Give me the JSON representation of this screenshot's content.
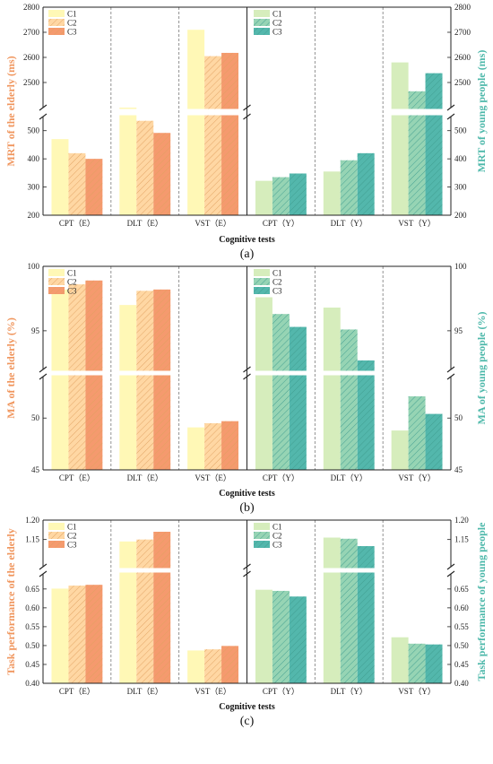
{
  "colors": {
    "E": [
      "#FFF8B6",
      "#FFD7A3",
      "#F59A6E"
    ],
    "Y": [
      "#D6EDBC",
      "#96D4B4",
      "#53B7AC"
    ],
    "E_label": "#F0965E",
    "Y_label": "#4DB8AA"
  },
  "chart_data": [
    {
      "type": "bar",
      "panel_label": "(a)",
      "xlabel": "Cognitive tests",
      "ylabel_left": "MRT of the elderly (ms)",
      "ylabel_right": "MRT of young people (ms)",
      "broken_axis": true,
      "ylim_lower": [
        200,
        550
      ],
      "ylim_upper": [
        2400,
        2800
      ],
      "yticks_lower": [
        "200",
        "300",
        "400",
        "500"
      ],
      "yticks_upper": [
        "2500",
        "2600",
        "2700",
        "2800"
      ],
      "lower_tick_values": [
        200,
        300,
        400,
        500
      ],
      "upper_tick_values": [
        2500,
        2600,
        2700,
        2800
      ],
      "legend_left": [
        "C1",
        "C2",
        "C3"
      ],
      "legend_right": [
        "C1",
        "C2",
        "C3"
      ],
      "categories": [
        "CPT（E）",
        "DLT（E）",
        "VST（E）",
        "CPT（Y）",
        "DLT（Y）",
        "VST（Y）"
      ],
      "series": [
        {
          "name": "C1",
          "values": [
            470,
            560,
            2710,
            322,
            355,
            2580
          ]
        },
        {
          "name": "C2",
          "values": [
            420,
            535,
            2605,
            335,
            395,
            2465
          ]
        },
        {
          "name": "C3",
          "values": [
            400,
            492,
            2618,
            348,
            420,
            2537
          ]
        }
      ]
    },
    {
      "type": "bar",
      "panel_label": "(b)",
      "xlabel": "Cognitive tests",
      "ylabel_left": "MA of the elderly (%)",
      "ylabel_right": "MA of young people (%)",
      "broken_axis": true,
      "ylim_lower": [
        45,
        54
      ],
      "ylim_upper": [
        92,
        100
      ],
      "yticks_lower": [
        "45",
        "50"
      ],
      "yticks_upper": [
        "95",
        "100"
      ],
      "lower_tick_values": [
        45,
        50
      ],
      "upper_tick_values": [
        95,
        100
      ],
      "legend_left": [
        "C1",
        "C2",
        "C3"
      ],
      "legend_right": [
        "C1",
        "C2",
        "C3"
      ],
      "categories": [
        "CPT（E）",
        "DLT（E）",
        "VST（E）",
        "CPT（Y）",
        "DLT（Y）",
        "VST（Y）"
      ],
      "series": [
        {
          "name": "C1",
          "values": [
            98.2,
            97.0,
            49.1,
            97.6,
            96.8,
            48.8
          ]
        },
        {
          "name": "C2",
          "values": [
            98.6,
            98.1,
            49.5,
            96.3,
            95.1,
            52.1
          ]
        },
        {
          "name": "C3",
          "values": [
            98.9,
            98.2,
            49.7,
            95.3,
            92.7,
            50.4
          ]
        }
      ]
    },
    {
      "type": "bar",
      "panel_label": "(c)",
      "xlabel": "Cognitive tests",
      "ylabel_left": "Task performance of the elderly",
      "ylabel_right": "Task performance of young people",
      "broken_axis": true,
      "ylim_lower": [
        0.4,
        0.69
      ],
      "ylim_upper": [
        1.08,
        1.2
      ],
      "yticks_lower": [
        "0.40",
        "0.45",
        "0.50",
        "0.55",
        "0.60",
        "0.65"
      ],
      "yticks_upper": [
        "1.15",
        "1.20"
      ],
      "lower_tick_values": [
        0.4,
        0.45,
        0.5,
        0.55,
        0.6,
        0.65
      ],
      "upper_tick_values": [
        1.15,
        1.2
      ],
      "legend_left": [
        "C1",
        "C2",
        "C3"
      ],
      "legend_right": [
        "C1",
        "C2",
        "C3"
      ],
      "categories": [
        "CPT（E）",
        "DLT（E）",
        "VST（E）",
        "CPT（Y）",
        "DLT（Y）",
        "VST（Y）"
      ],
      "series": [
        {
          "name": "C1",
          "values": [
            0.651,
            1.145,
            0.487,
            0.648,
            1.155,
            0.522
          ]
        },
        {
          "name": "C2",
          "values": [
            0.659,
            1.15,
            0.49,
            0.645,
            1.152,
            0.505
          ]
        },
        {
          "name": "C3",
          "values": [
            0.661,
            1.17,
            0.499,
            0.63,
            1.133,
            0.503
          ]
        }
      ]
    }
  ]
}
